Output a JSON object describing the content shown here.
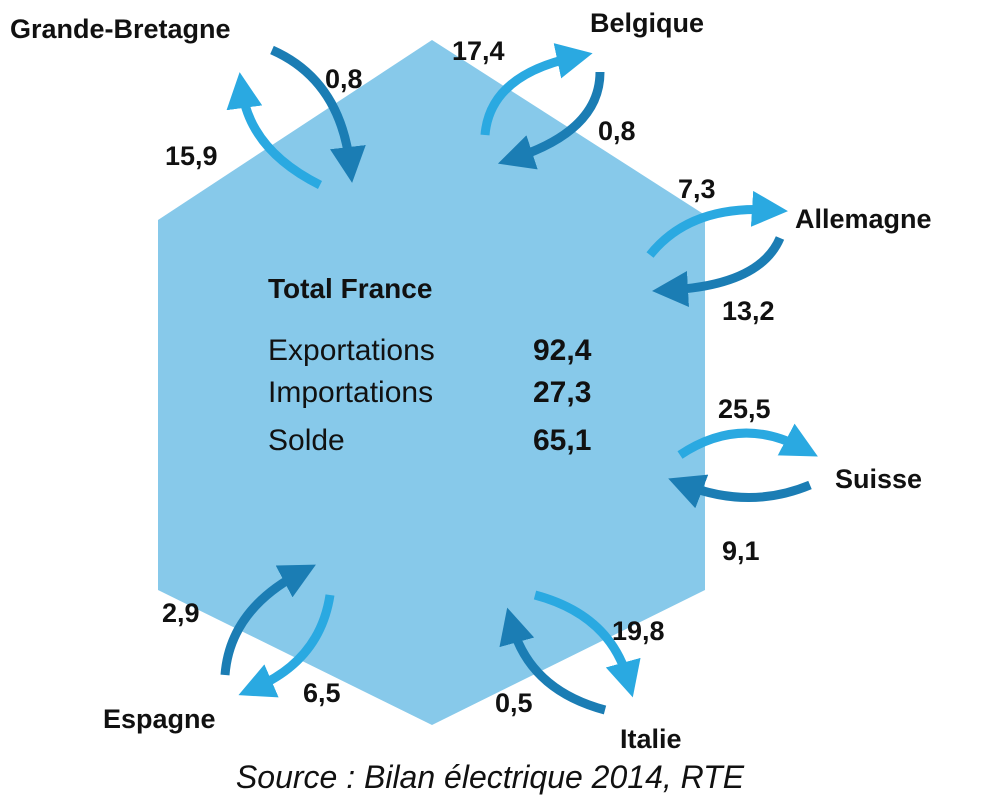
{
  "countries": [
    {
      "name": "Grande-Bretagne",
      "export": "15,9",
      "import": "0,8"
    },
    {
      "name": "Belgique",
      "export": "17,4",
      "import": "0,8"
    },
    {
      "name": "Allemagne",
      "export": "7,3",
      "import": "13,2"
    },
    {
      "name": "Suisse",
      "export": "25,5",
      "import": "9,1"
    },
    {
      "name": "Italie",
      "export": "19,8",
      "import": "0,5"
    },
    {
      "name": "Espagne",
      "export": "6,5",
      "import": "2,9"
    }
  ],
  "total": {
    "title": "Total France",
    "rows": [
      {
        "label": "Exportations",
        "value": "92,4"
      },
      {
        "label": "Importations",
        "value": "27,3"
      },
      {
        "label": "Solde",
        "value": "65,1"
      }
    ]
  },
  "source": "Source : Bilan électrique 2014, RTE"
}
